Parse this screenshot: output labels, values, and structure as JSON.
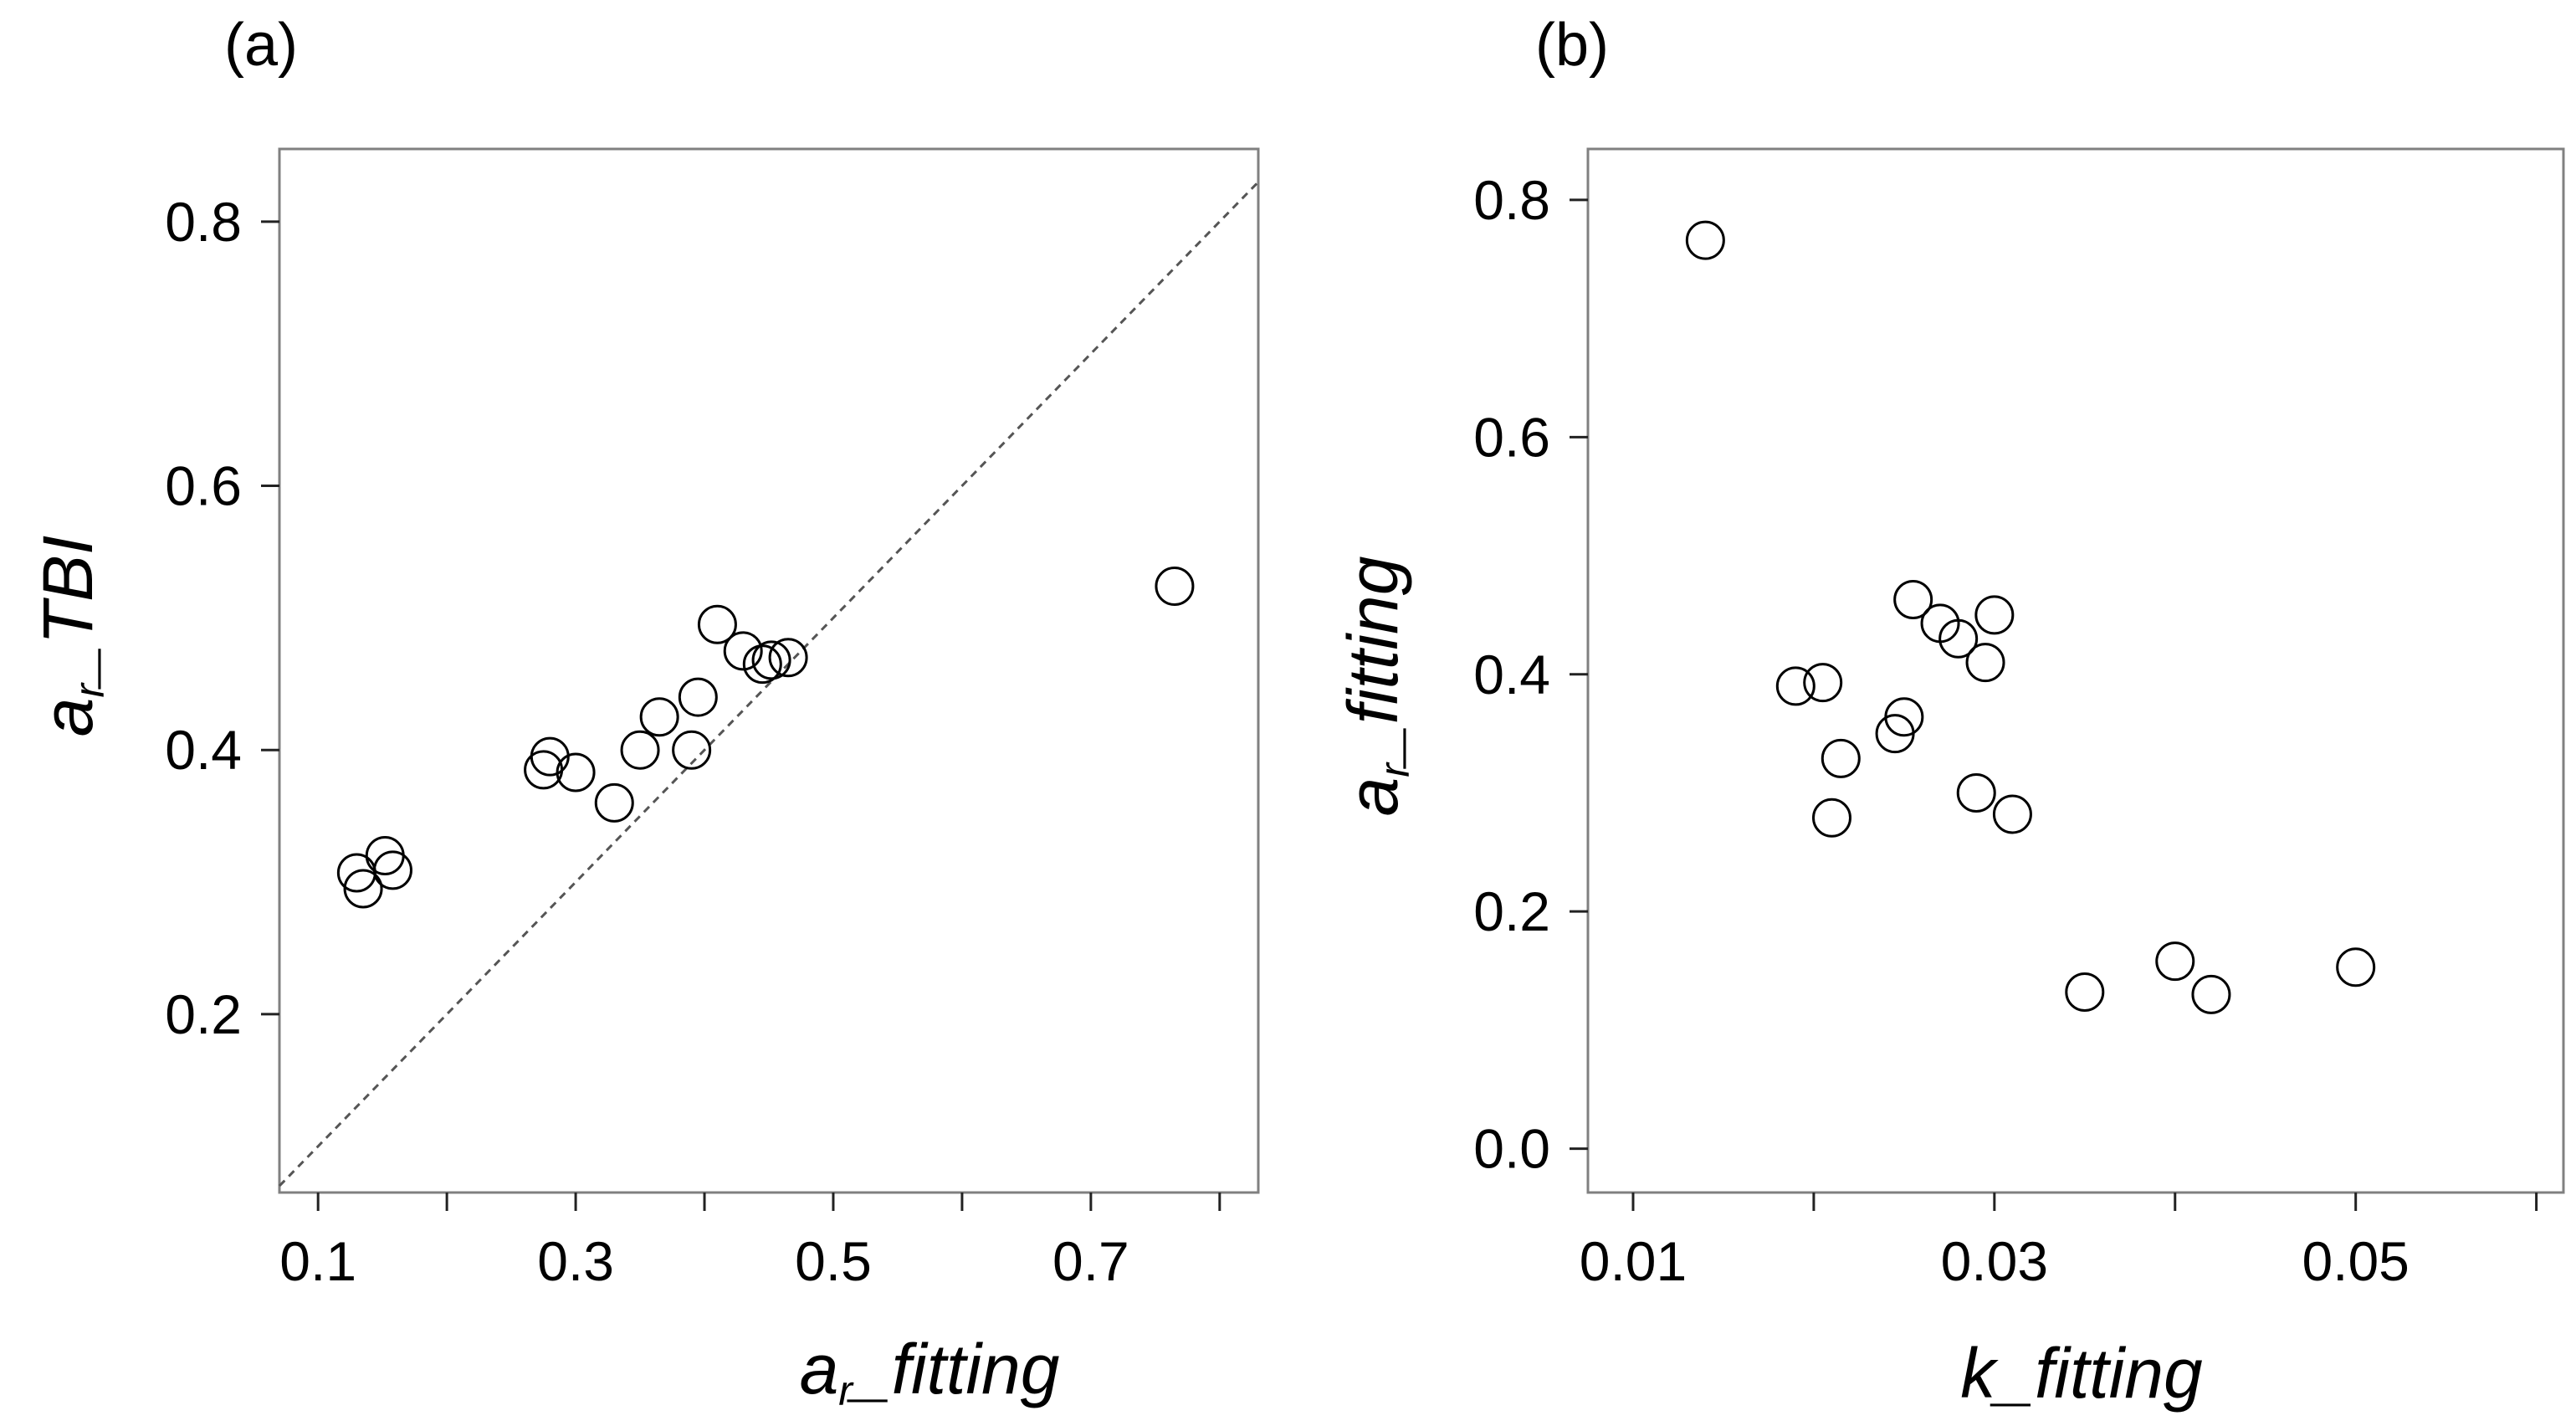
{
  "chart_data": [
    {
      "type": "scatter",
      "panel_label": "(a)",
      "xlabel": {
        "main": "a",
        "sub": "r",
        "rest": "_fitting"
      },
      "ylabel": {
        "main": "a",
        "sub": "r",
        "rest": "_TBI"
      },
      "xlim": [
        0.07,
        0.83
      ],
      "ylim": [
        0.065,
        0.855
      ],
      "xticks": [
        0.1,
        0.2,
        0.3,
        0.4,
        0.5,
        0.6,
        0.7,
        0.8
      ],
      "xtick_labels": [
        "0.1",
        "",
        "0.3",
        "",
        "0.5",
        "",
        "0.7",
        ""
      ],
      "yticks": [
        0.2,
        0.4,
        0.6,
        0.8
      ],
      "ytick_labels": [
        "0.2",
        "0.4",
        "0.6",
        "0.8"
      ],
      "reference_line": "y = x (dashed)",
      "marker": "open circle",
      "x": [
        0.13,
        0.135,
        0.152,
        0.158,
        0.275,
        0.28,
        0.3,
        0.33,
        0.35,
        0.365,
        0.39,
        0.395,
        0.41,
        0.43,
        0.445,
        0.452,
        0.465,
        0.765
      ],
      "y": [
        0.307,
        0.295,
        0.32,
        0.309,
        0.385,
        0.395,
        0.383,
        0.36,
        0.4,
        0.425,
        0.4,
        0.44,
        0.495,
        0.475,
        0.465,
        0.468,
        0.47,
        0.524
      ]
    },
    {
      "type": "scatter",
      "panel_label": "(b)",
      "xlabel": {
        "main": "k",
        "sub": "",
        "rest": "_fitting"
      },
      "ylabel": {
        "main": "a",
        "sub": "r",
        "rest": "_fitting"
      },
      "xlim": [
        0.0075,
        0.0615
      ],
      "ylim": [
        -0.037,
        0.843
      ],
      "xticks": [
        0.01,
        0.02,
        0.03,
        0.04,
        0.05,
        0.06
      ],
      "xtick_labels": [
        "0.01",
        "",
        "0.03",
        "",
        "0.05",
        ""
      ],
      "yticks": [
        0.0,
        0.2,
        0.4,
        0.6,
        0.8
      ],
      "ytick_labels": [
        "0.0",
        "0.2",
        "0.4",
        "0.6",
        "0.8"
      ],
      "marker": "open circle",
      "x": [
        0.014,
        0.019,
        0.0205,
        0.021,
        0.0215,
        0.0245,
        0.025,
        0.0255,
        0.027,
        0.028,
        0.029,
        0.0295,
        0.03,
        0.031,
        0.035,
        0.04,
        0.042,
        0.05
      ],
      "y": [
        0.766,
        0.39,
        0.393,
        0.279,
        0.329,
        0.35,
        0.364,
        0.463,
        0.443,
        0.43,
        0.3,
        0.41,
        0.45,
        0.282,
        0.132,
        0.158,
        0.13,
        0.153
      ]
    }
  ]
}
